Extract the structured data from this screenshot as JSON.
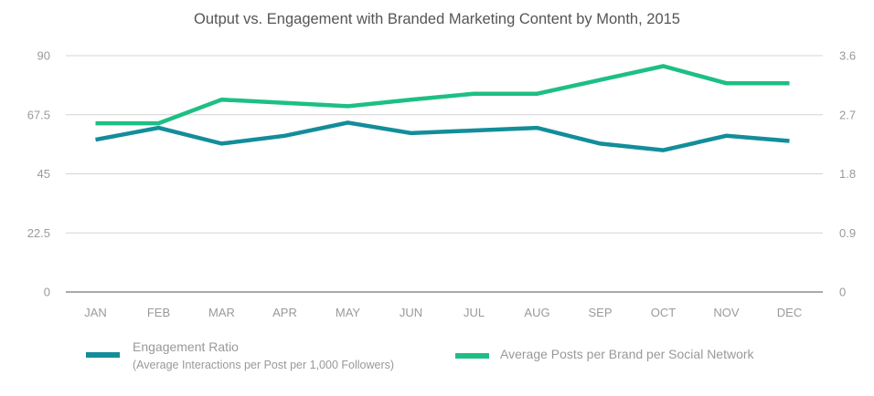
{
  "chart_data": {
    "type": "line",
    "title": "Output vs. Engagement with Branded Marketing Content by Month, 2015",
    "xlabel": "",
    "ylabel": "",
    "categories": [
      "JAN",
      "FEB",
      "MAR",
      "APR",
      "MAY",
      "JUN",
      "JUL",
      "AUG",
      "SEP",
      "OCT",
      "NOV",
      "DEC"
    ],
    "y_left": {
      "ticks": [
        "0",
        "22.5",
        "45",
        "67.5",
        "90"
      ],
      "range": [
        0,
        90
      ]
    },
    "y_right": {
      "ticks": [
        "0",
        "0.9",
        "1.8",
        "2.7",
        "3.6"
      ],
      "range": [
        0,
        3.6
      ]
    },
    "grid": true,
    "legend_position": "bottom",
    "series": [
      {
        "name": "Engagement Ratio",
        "subtitle": "(Average Interactions per Post per 1,000 Followers)",
        "axis": "left",
        "color": "#138d9a",
        "values": [
          58,
          62.5,
          56.5,
          59.5,
          64.5,
          60.5,
          61.5,
          62.5,
          56.5,
          54,
          59.5,
          57.5
        ]
      },
      {
        "name": "Average Posts per Brand per Social Network",
        "subtitle": "",
        "axis": "right",
        "color": "#1dbf84",
        "values": [
          2.57,
          2.57,
          2.93,
          2.88,
          2.83,
          2.93,
          3.02,
          3.02,
          3.23,
          3.44,
          3.18,
          3.18
        ]
      }
    ]
  }
}
